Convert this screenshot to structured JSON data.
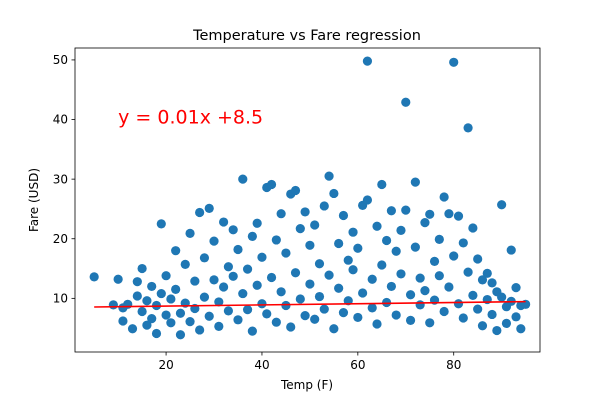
{
  "chart_data": {
    "type": "scatter",
    "title": "Temperature vs Fare regression",
    "xlabel": "Temp (F)",
    "ylabel": "Fare (USD)",
    "xlim": [
      1,
      98
    ],
    "ylim": [
      1,
      52
    ],
    "xticks": [
      20,
      40,
      60,
      80
    ],
    "yticks": [
      10,
      20,
      30,
      40,
      50
    ],
    "grid": false,
    "legend": "none",
    "colors": {
      "points": "#1f77b4",
      "regression": "#ff0000",
      "equation": "#ff0000"
    },
    "regression": {
      "slope": 0.01,
      "intercept": 8.5,
      "x_range": [
        5,
        95
      ]
    },
    "annotation": {
      "text": "y = 0.01x +8.5",
      "x": 10,
      "y": 40.5
    },
    "points": [
      [
        5,
        13.6
      ],
      [
        9,
        8.9
      ],
      [
        10,
        13.2
      ],
      [
        11,
        6.2
      ],
      [
        11,
        8.4
      ],
      [
        12,
        9
      ],
      [
        13,
        4.9
      ],
      [
        14,
        12.8
      ],
      [
        14,
        10.4
      ],
      [
        15,
        15
      ],
      [
        15,
        7.8
      ],
      [
        16,
        9.6
      ],
      [
        16,
        5.5
      ],
      [
        17,
        12
      ],
      [
        17,
        6.6
      ],
      [
        18,
        8.8
      ],
      [
        18,
        4.1
      ],
      [
        19,
        10.8
      ],
      [
        19,
        22.5
      ],
      [
        20,
        7.2
      ],
      [
        20,
        13.8
      ],
      [
        21,
        5.9
      ],
      [
        21,
        9.9
      ],
      [
        22,
        18
      ],
      [
        22,
        11.5
      ],
      [
        23,
        7.5
      ],
      [
        23,
        3.9
      ],
      [
        24,
        15.7
      ],
      [
        24,
        9.2
      ],
      [
        25,
        20.9
      ],
      [
        25,
        6.1
      ],
      [
        26,
        12.9
      ],
      [
        26,
        8.3
      ],
      [
        27,
        24.4
      ],
      [
        27,
        4.7
      ],
      [
        28,
        10.2
      ],
      [
        28,
        16.8
      ],
      [
        29,
        25.1
      ],
      [
        29,
        7
      ],
      [
        30,
        13.1
      ],
      [
        30,
        19.6
      ],
      [
        31,
        9.4
      ],
      [
        31,
        5.3
      ],
      [
        32,
        22.8
      ],
      [
        32,
        11.9
      ],
      [
        33,
        15.3
      ],
      [
        33,
        7.9
      ],
      [
        34,
        21.5
      ],
      [
        34,
        13.7
      ],
      [
        35,
        18.2
      ],
      [
        35,
        6.4
      ],
      [
        36,
        30
      ],
      [
        36,
        10.8
      ],
      [
        37,
        14.9
      ],
      [
        37,
        8.1
      ],
      [
        38,
        20.4
      ],
      [
        38,
        4.5
      ],
      [
        39,
        22.6
      ],
      [
        39,
        12.2
      ],
      [
        40,
        16.9
      ],
      [
        40,
        9.1
      ],
      [
        41,
        28.6
      ],
      [
        41,
        7.4
      ],
      [
        42,
        29.1
      ],
      [
        42,
        13.5
      ],
      [
        43,
        19.8
      ],
      [
        43,
        6
      ],
      [
        44,
        24.2
      ],
      [
        44,
        11.1
      ],
      [
        45,
        17.6
      ],
      [
        45,
        8.8
      ],
      [
        46,
        27.5
      ],
      [
        46,
        5.2
      ],
      [
        47,
        28.1
      ],
      [
        47,
        14.3
      ],
      [
        48,
        21.7
      ],
      [
        48,
        9.9
      ],
      [
        49,
        24.5
      ],
      [
        49,
        7.1
      ],
      [
        50,
        18.9
      ],
      [
        50,
        12.4
      ],
      [
        51,
        22.3
      ],
      [
        51,
        6.5
      ],
      [
        52,
        15.8
      ],
      [
        52,
        10.3
      ],
      [
        53,
        25.5
      ],
      [
        53,
        8.2
      ],
      [
        54,
        30.5
      ],
      [
        54,
        13.9
      ],
      [
        55,
        27.6
      ],
      [
        55,
        4.9
      ],
      [
        56,
        19.2
      ],
      [
        56,
        11.7
      ],
      [
        57,
        23.9
      ],
      [
        57,
        7.6
      ],
      [
        58,
        16.4
      ],
      [
        58,
        9.6
      ],
      [
        59,
        21.1
      ],
      [
        59,
        14.8
      ],
      [
        60,
        18.4
      ],
      [
        60,
        6.8
      ],
      [
        61,
        25.6
      ],
      [
        61,
        10.9
      ],
      [
        62,
        49.8
      ],
      [
        62,
        26.5
      ],
      [
        63,
        13.2
      ],
      [
        63,
        8.4
      ],
      [
        64,
        22.1
      ],
      [
        64,
        5.7
      ],
      [
        65,
        29.1
      ],
      [
        65,
        15.6
      ],
      [
        66,
        19.7
      ],
      [
        66,
        9.3
      ],
      [
        67,
        24.7
      ],
      [
        67,
        12
      ],
      [
        68,
        17.9
      ],
      [
        68,
        7.2
      ],
      [
        69,
        21.4
      ],
      [
        69,
        14.1
      ],
      [
        70,
        42.9
      ],
      [
        70,
        24.8
      ],
      [
        71,
        10.6
      ],
      [
        71,
        6.3
      ],
      [
        72,
        29.5
      ],
      [
        72,
        18.6
      ],
      [
        73,
        13.4
      ],
      [
        73,
        8.9
      ],
      [
        74,
        22.7
      ],
      [
        74,
        11.3
      ],
      [
        75,
        24.1
      ],
      [
        75,
        5.9
      ],
      [
        76,
        16.2
      ],
      [
        76,
        9.7
      ],
      [
        77,
        19.9
      ],
      [
        77,
        13.8
      ],
      [
        78,
        27
      ],
      [
        78,
        7.8
      ],
      [
        79,
        24.2
      ],
      [
        79,
        11.9
      ],
      [
        80,
        49.6
      ],
      [
        80,
        17.1
      ],
      [
        81,
        23.8
      ],
      [
        81,
        9.1
      ],
      [
        82,
        19.3
      ],
      [
        82,
        6.7
      ],
      [
        83,
        38.6
      ],
      [
        83,
        14.4
      ],
      [
        84,
        21.8
      ],
      [
        84,
        10.5
      ],
      [
        85,
        16.6
      ],
      [
        85,
        8.2
      ],
      [
        86,
        13.1
      ],
      [
        86,
        5.4
      ],
      [
        87,
        14.2
      ],
      [
        87,
        9.8
      ],
      [
        88,
        12.6
      ],
      [
        88,
        7.3
      ],
      [
        89,
        11.1
      ],
      [
        89,
        4.6
      ],
      [
        90,
        25.7
      ],
      [
        90,
        10.2
      ],
      [
        91,
        8.6
      ],
      [
        91,
        5.8
      ],
      [
        92,
        18.1
      ],
      [
        92,
        9.5
      ],
      [
        93,
        6.9
      ],
      [
        93,
        11.8
      ],
      [
        94,
        4.9
      ],
      [
        94,
        8.8
      ],
      [
        95,
        9
      ]
    ]
  }
}
